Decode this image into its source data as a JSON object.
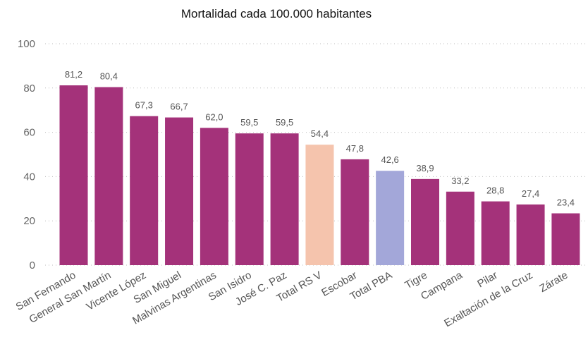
{
  "chart_data": {
    "type": "bar",
    "title": "Mortalidad cada 100.000 habitantes",
    "xlabel": "",
    "ylabel": "",
    "ylim": [
      0,
      100
    ],
    "yticks": [
      0,
      20,
      40,
      60,
      80,
      100
    ],
    "grid": true,
    "categories": [
      "San Fernando",
      "General San Martín",
      "Vicente López",
      "San Miguel",
      "Malvinas Argentinas",
      "San Isidro",
      "José C. Paz",
      "Total RS V",
      "Escobar",
      "Total PBA",
      "Tigre",
      "Campana",
      "Pilar",
      "Exaltación de la Cruz",
      "Zárate"
    ],
    "values": [
      81.2,
      80.4,
      67.3,
      66.7,
      62.0,
      59.5,
      59.5,
      54.4,
      47.8,
      42.6,
      38.9,
      33.2,
      28.8,
      27.4,
      23.4
    ],
    "value_labels": [
      "81,2",
      "80,4",
      "67,3",
      "66,7",
      "62,0",
      "59,5",
      "59,5",
      "54,4",
      "47,8",
      "42,6",
      "38,9",
      "33,2",
      "28,8",
      "27,4",
      "23,4"
    ],
    "colors": [
      "#a4327a",
      "#a4327a",
      "#a4327a",
      "#a4327a",
      "#a4327a",
      "#a4327a",
      "#a4327a",
      "#f5c4ad",
      "#a4327a",
      "#a3a7d9",
      "#a4327a",
      "#a4327a",
      "#a4327a",
      "#a4327a",
      "#a4327a"
    ]
  }
}
